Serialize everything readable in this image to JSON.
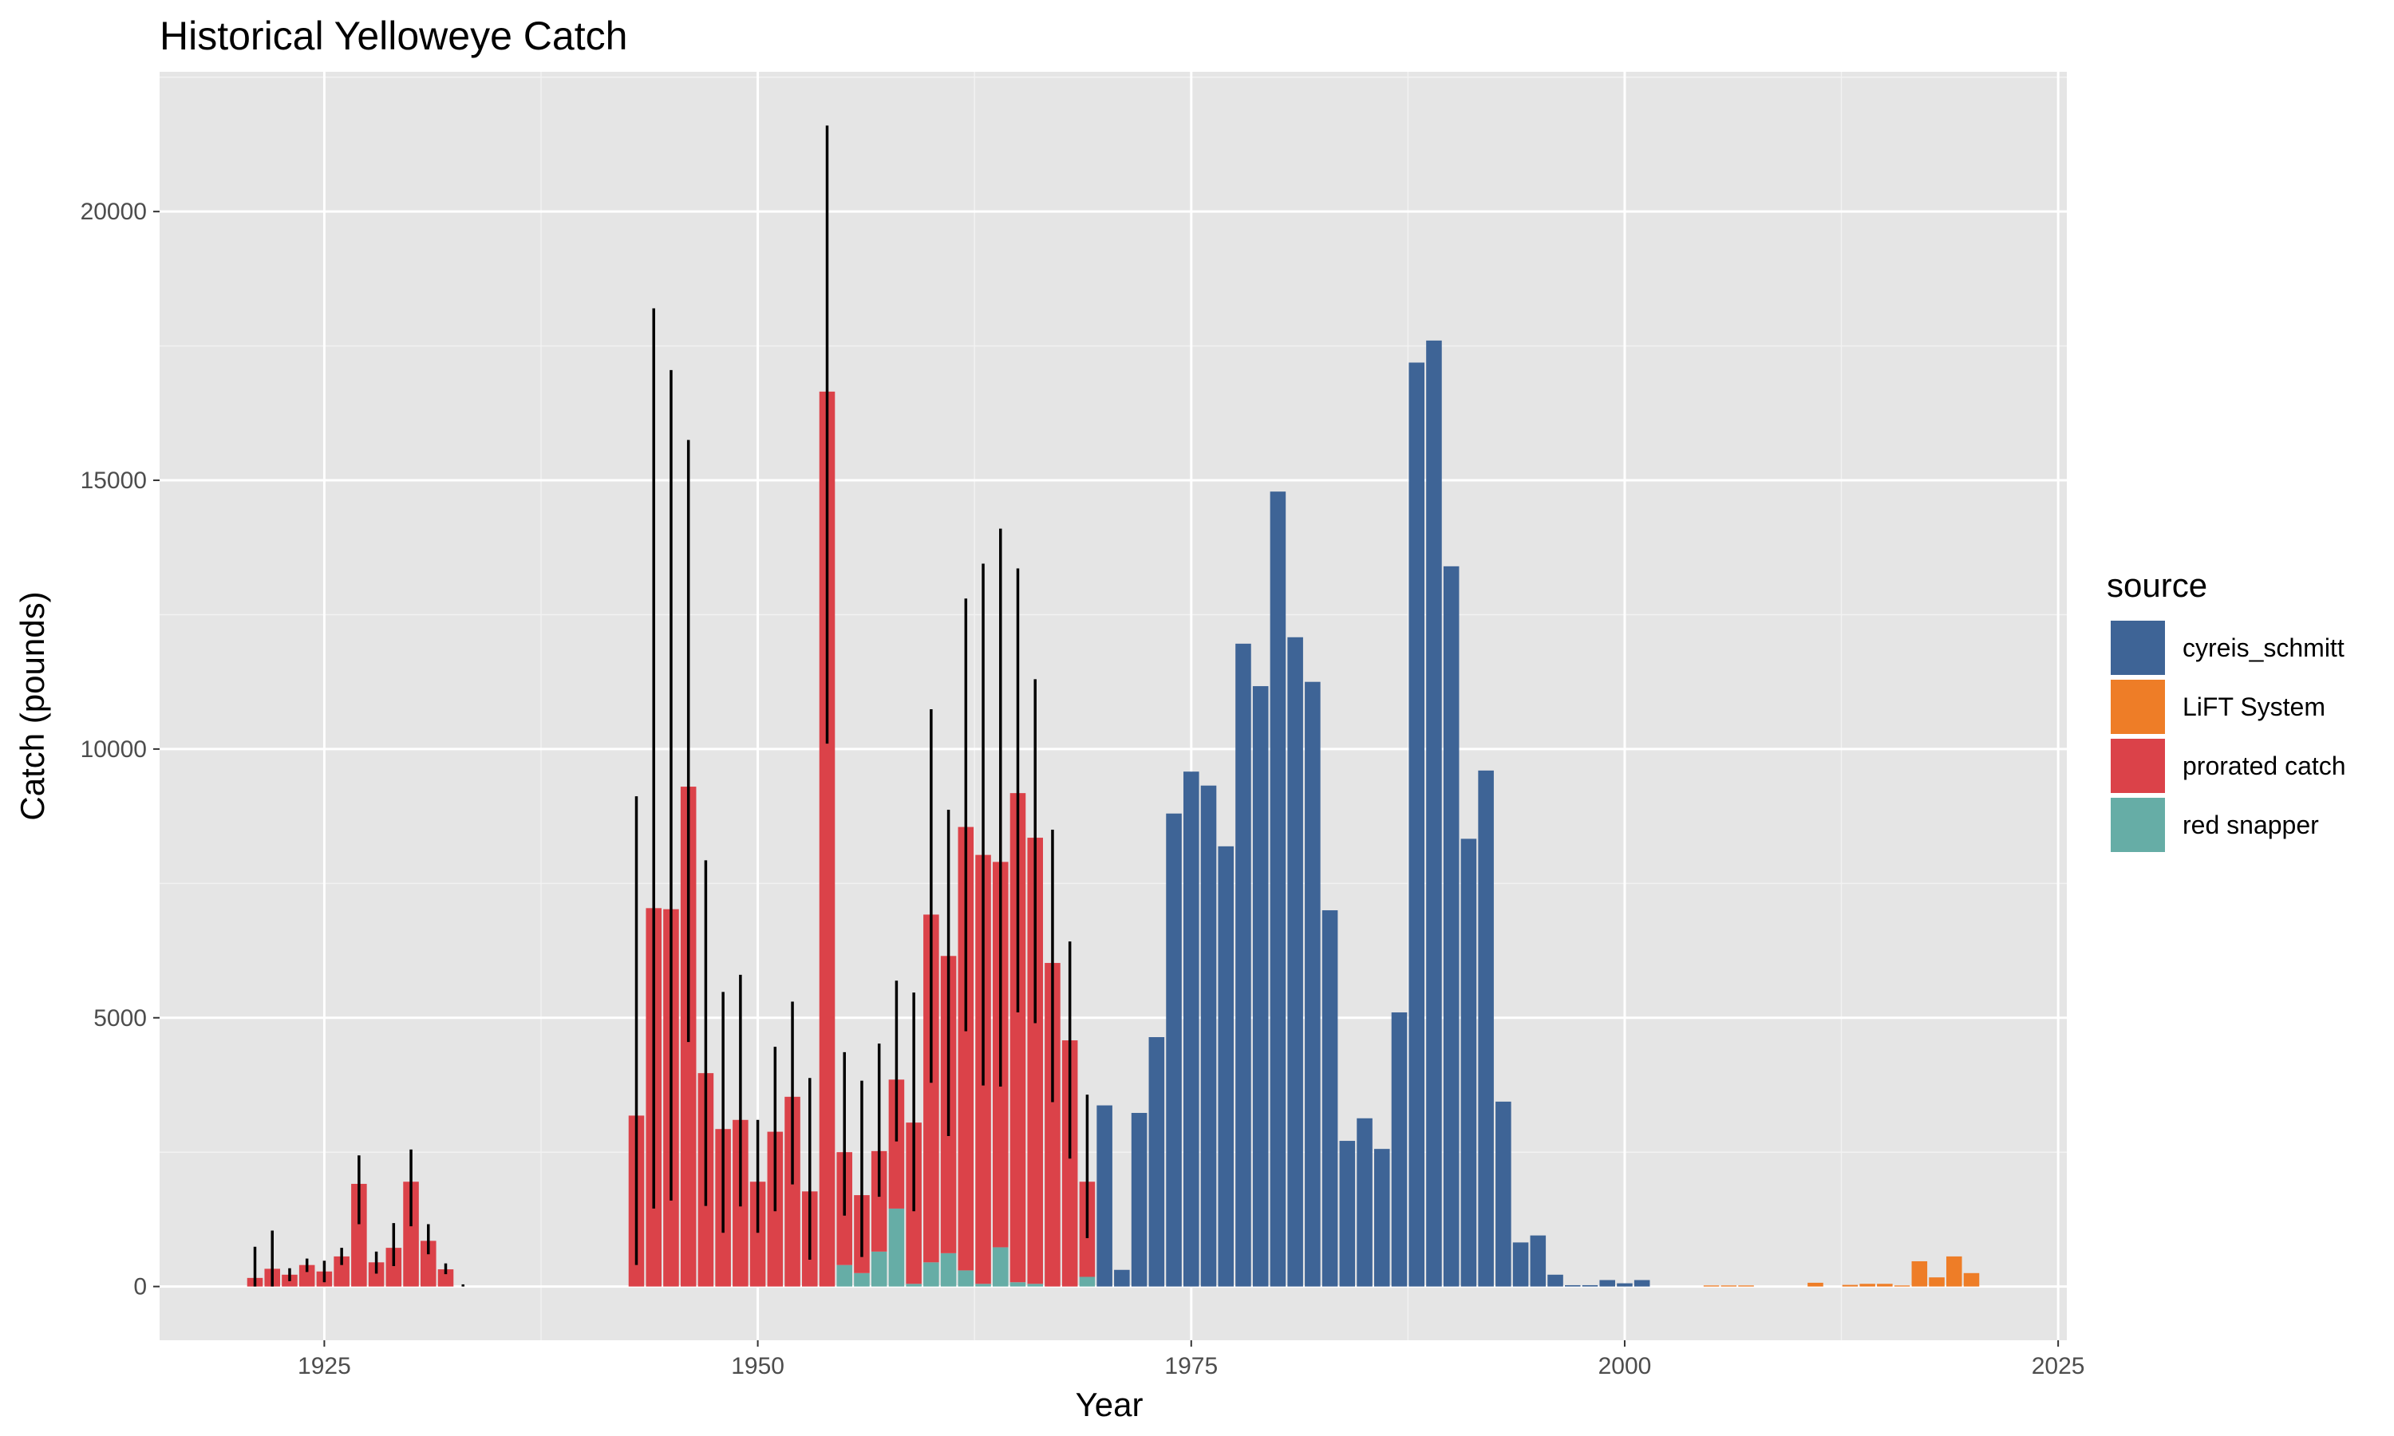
{
  "chart_data": {
    "type": "bar",
    "stacked": true,
    "title": "Historical Yelloweye Catch",
    "xlabel": "Year",
    "ylabel": "Catch (pounds)",
    "xlim": [
      1915.5,
      2025.5
    ],
    "ylim": [
      -1000,
      22600
    ],
    "xticks": [
      1925,
      1950,
      1975,
      2000,
      2025
    ],
    "yticks": [
      0,
      5000,
      10000,
      15000,
      20000
    ],
    "grid": true,
    "legend": {
      "title": "source",
      "position": "right"
    },
    "colors": {
      "cyreis_schmitt": "#3e6496",
      "LiFT System": "#ee7d27",
      "prorated catch": "#db4249",
      "red snapper": "#66ada6"
    },
    "series": [
      {
        "name": "red snapper",
        "points": [
          {
            "x": 1955,
            "y": 400
          },
          {
            "x": 1956,
            "y": 250
          },
          {
            "x": 1957,
            "y": 650
          },
          {
            "x": 1958,
            "y": 1450
          },
          {
            "x": 1959,
            "y": 50
          },
          {
            "x": 1960,
            "y": 450
          },
          {
            "x": 1961,
            "y": 620
          },
          {
            "x": 1962,
            "y": 300
          },
          {
            "x": 1963,
            "y": 50
          },
          {
            "x": 1964,
            "y": 730
          },
          {
            "x": 1965,
            "y": 80
          },
          {
            "x": 1966,
            "y": 50
          },
          {
            "x": 1969,
            "y": 180
          }
        ]
      },
      {
        "name": "prorated catch",
        "points": [
          {
            "x": 1921,
            "y": 160
          },
          {
            "x": 1922,
            "y": 330
          },
          {
            "x": 1923,
            "y": 220
          },
          {
            "x": 1924,
            "y": 400
          },
          {
            "x": 1925,
            "y": 280
          },
          {
            "x": 1926,
            "y": 560
          },
          {
            "x": 1927,
            "y": 1910
          },
          {
            "x": 1928,
            "y": 450
          },
          {
            "x": 1929,
            "y": 720
          },
          {
            "x": 1930,
            "y": 1950
          },
          {
            "x": 1931,
            "y": 850
          },
          {
            "x": 1932,
            "y": 320
          },
          {
            "x": 1943,
            "y": 3180
          },
          {
            "x": 1944,
            "y": 7040
          },
          {
            "x": 1945,
            "y": 7020
          },
          {
            "x": 1946,
            "y": 9300
          },
          {
            "x": 1947,
            "y": 3970
          },
          {
            "x": 1948,
            "y": 2930
          },
          {
            "x": 1949,
            "y": 3100
          },
          {
            "x": 1950,
            "y": 1950
          },
          {
            "x": 1951,
            "y": 2880
          },
          {
            "x": 1952,
            "y": 3530
          },
          {
            "x": 1953,
            "y": 1770
          },
          {
            "x": 1954,
            "y": 16650
          },
          {
            "x": 1955,
            "y": 2100
          },
          {
            "x": 1956,
            "y": 1450
          },
          {
            "x": 1957,
            "y": 1870
          },
          {
            "x": 1958,
            "y": 2400
          },
          {
            "x": 1959,
            "y": 3000
          },
          {
            "x": 1960,
            "y": 6470
          },
          {
            "x": 1961,
            "y": 5530
          },
          {
            "x": 1962,
            "y": 8250
          },
          {
            "x": 1963,
            "y": 7980
          },
          {
            "x": 1964,
            "y": 7170
          },
          {
            "x": 1965,
            "y": 9100
          },
          {
            "x": 1966,
            "y": 8300
          },
          {
            "x": 1967,
            "y": 6020
          },
          {
            "x": 1968,
            "y": 4580
          },
          {
            "x": 1969,
            "y": 1770
          }
        ]
      },
      {
        "name": "cyreis_schmitt",
        "points": [
          {
            "x": 1970,
            "y": 3370
          },
          {
            "x": 1971,
            "y": 310
          },
          {
            "x": 1972,
            "y": 3230
          },
          {
            "x": 1973,
            "y": 4640
          },
          {
            "x": 1974,
            "y": 8800
          },
          {
            "x": 1975,
            "y": 9580
          },
          {
            "x": 1976,
            "y": 9320
          },
          {
            "x": 1977,
            "y": 8190
          },
          {
            "x": 1978,
            "y": 11960
          },
          {
            "x": 1979,
            "y": 11170
          },
          {
            "x": 1980,
            "y": 14790
          },
          {
            "x": 1981,
            "y": 12080
          },
          {
            "x": 1982,
            "y": 11250
          },
          {
            "x": 1983,
            "y": 7000
          },
          {
            "x": 1984,
            "y": 2710
          },
          {
            "x": 1985,
            "y": 3130
          },
          {
            "x": 1986,
            "y": 2560
          },
          {
            "x": 1987,
            "y": 5100
          },
          {
            "x": 1988,
            "y": 17190
          },
          {
            "x": 1989,
            "y": 17600
          },
          {
            "x": 1990,
            "y": 13400
          },
          {
            "x": 1991,
            "y": 8330
          },
          {
            "x": 1992,
            "y": 9600
          },
          {
            "x": 1993,
            "y": 3440
          },
          {
            "x": 1994,
            "y": 820
          },
          {
            "x": 1995,
            "y": 950
          },
          {
            "x": 1996,
            "y": 220
          },
          {
            "x": 1997,
            "y": 25
          },
          {
            "x": 1998,
            "y": 25
          },
          {
            "x": 1999,
            "y": 120
          },
          {
            "x": 2000,
            "y": 60
          },
          {
            "x": 2001,
            "y": 120
          }
        ]
      },
      {
        "name": "LiFT System",
        "points": [
          {
            "x": 2005,
            "y": 20
          },
          {
            "x": 2006,
            "y": 20
          },
          {
            "x": 2007,
            "y": 20
          },
          {
            "x": 2011,
            "y": 70
          },
          {
            "x": 2013,
            "y": 30
          },
          {
            "x": 2014,
            "y": 50
          },
          {
            "x": 2015,
            "y": 50
          },
          {
            "x": 2016,
            "y": 20
          },
          {
            "x": 2017,
            "y": 470
          },
          {
            "x": 2018,
            "y": 170
          },
          {
            "x": 2019,
            "y": 560
          },
          {
            "x": 2020,
            "y": 250
          }
        ]
      }
    ],
    "error_bars": [
      {
        "x": 1921,
        "low": 0,
        "high": 740
      },
      {
        "x": 1922,
        "low": 0,
        "high": 1040
      },
      {
        "x": 1923,
        "low": 100,
        "high": 340
      },
      {
        "x": 1924,
        "low": 270,
        "high": 520
      },
      {
        "x": 1925,
        "low": 80,
        "high": 480
      },
      {
        "x": 1926,
        "low": 400,
        "high": 720
      },
      {
        "x": 1927,
        "low": 1160,
        "high": 2440
      },
      {
        "x": 1928,
        "low": 240,
        "high": 650
      },
      {
        "x": 1929,
        "low": 380,
        "high": 1180
      },
      {
        "x": 1930,
        "low": 1120,
        "high": 2550
      },
      {
        "x": 1931,
        "low": 600,
        "high": 1160
      },
      {
        "x": 1932,
        "low": 230,
        "high": 430
      },
      {
        "x": 1933,
        "low": 0,
        "high": 40
      },
      {
        "x": 1943,
        "low": 400,
        "high": 9120
      },
      {
        "x": 1944,
        "low": 1450,
        "high": 18200
      },
      {
        "x": 1945,
        "low": 1600,
        "high": 17050
      },
      {
        "x": 1946,
        "low": 4550,
        "high": 15750
      },
      {
        "x": 1947,
        "low": 1500,
        "high": 7930
      },
      {
        "x": 1948,
        "low": 1000,
        "high": 5480
      },
      {
        "x": 1949,
        "low": 1490,
        "high": 5800
      },
      {
        "x": 1950,
        "low": 1000,
        "high": 3100
      },
      {
        "x": 1951,
        "low": 1400,
        "high": 4460
      },
      {
        "x": 1952,
        "low": 1900,
        "high": 5300
      },
      {
        "x": 1953,
        "low": 500,
        "high": 3880
      },
      {
        "x": 1954,
        "low": 10100,
        "high": 21600
      },
      {
        "x": 1955,
        "low": 1320,
        "high": 4360
      },
      {
        "x": 1956,
        "low": 550,
        "high": 3830
      },
      {
        "x": 1957,
        "low": 1670,
        "high": 4520
      },
      {
        "x": 1958,
        "low": 2700,
        "high": 5690
      },
      {
        "x": 1959,
        "low": 1400,
        "high": 5470
      },
      {
        "x": 1960,
        "low": 3790,
        "high": 10740
      },
      {
        "x": 1961,
        "low": 2800,
        "high": 8870
      },
      {
        "x": 1962,
        "low": 4750,
        "high": 12800
      },
      {
        "x": 1963,
        "low": 3740,
        "high": 13450
      },
      {
        "x": 1964,
        "low": 3720,
        "high": 14100
      },
      {
        "x": 1965,
        "low": 5100,
        "high": 13360
      },
      {
        "x": 1966,
        "low": 4900,
        "high": 11300
      },
      {
        "x": 1967,
        "low": 3430,
        "high": 8500
      },
      {
        "x": 1968,
        "low": 2380,
        "high": 6420
      },
      {
        "x": 1969,
        "low": 900,
        "high": 3570
      }
    ]
  }
}
